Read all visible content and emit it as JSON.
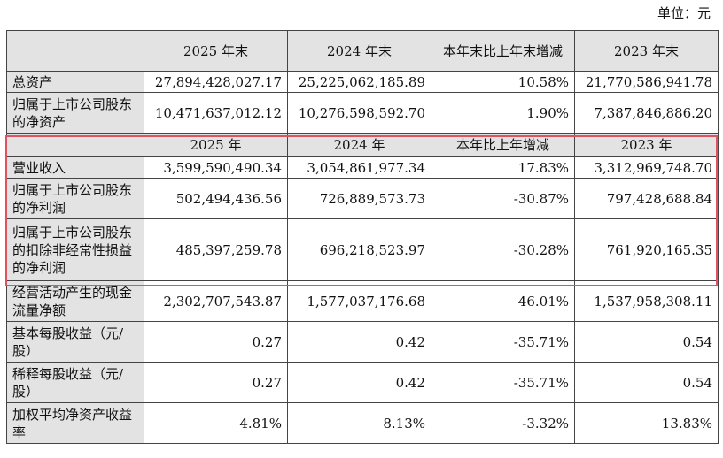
{
  "unit_label": "单位：元",
  "header_top": [
    "2025 年末",
    "2024 年末",
    "本年末比上年末增减",
    "2023 年末"
  ],
  "rows_top": [
    {
      "label": "总资产",
      "values": [
        "27,894,428,027.17",
        "25,225,062,185.89",
        "10.58%",
        "21,770,586,941.78"
      ]
    },
    {
      "label": "归属于上市公司股东的净资产",
      "values": [
        "10,471,637,012.12",
        "10,276,598,592.70",
        "1.90%",
        "7,387,846,886.20"
      ]
    }
  ],
  "header_mid": [
    "2025 年",
    "2024 年",
    "本年比上年增减",
    "2023 年"
  ],
  "rows_mid": [
    {
      "label": "营业收入",
      "values": [
        "3,599,590,490.34",
        "3,054,861,977.34",
        "17.83%",
        "3,312,969,748.70"
      ]
    },
    {
      "label": "归属于上市公司股东的净利润",
      "values": [
        "502,494,436.56",
        "726,889,573.73",
        "-30.87%",
        "797,428,688.84"
      ]
    },
    {
      "label": "归属于上市公司股东的扣除非经常性损益的净利润",
      "values": [
        "485,397,259.78",
        "696,218,523.97",
        "-30.28%",
        "761,920,165.35"
      ]
    },
    {
      "label": "经营活动产生的现金流量净额",
      "values": [
        "2,302,707,543.87",
        "1,577,037,176.68",
        "46.01%",
        "1,537,958,308.11"
      ]
    },
    {
      "label": "基本每股收益（元/股）",
      "values": [
        "0.27",
        "0.42",
        "-35.71%",
        "0.54"
      ]
    },
    {
      "label": "稀释每股收益（元/股）",
      "values": [
        "0.27",
        "0.42",
        "-35.71%",
        "0.54"
      ]
    },
    {
      "label": "加权平均净资产收益率",
      "values": [
        "4.81%",
        "8.13%",
        "-3.32%",
        "13.83%"
      ]
    }
  ],
  "colors": {
    "header_bg": "#e3e3e3",
    "highlight_border": "#e05260"
  }
}
